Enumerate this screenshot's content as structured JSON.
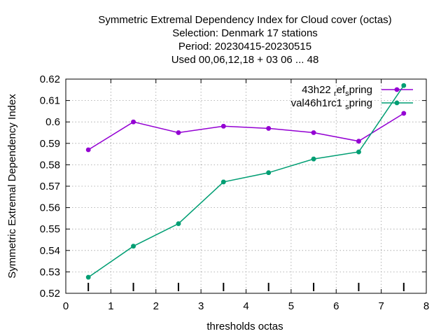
{
  "chart_data": {
    "type": "line",
    "title_lines": [
      "Symmetric Extremal Dependency Index  for Cloud cover (octas)",
      "Selection: Denmark     17 stations",
      "Period: 20230415-20230515",
      "Used  00,06,12,18  + 03 06 ... 48"
    ],
    "xlabel": "thresholds octas",
    "ylabel": "Symmetric Extremal Dependency Index",
    "xlim": [
      0,
      8
    ],
    "ylim": [
      0.52,
      0.62
    ],
    "x_ticks": [
      0,
      1,
      2,
      3,
      4,
      5,
      6,
      7,
      8
    ],
    "y_ticks": [
      0.52,
      0.53,
      0.54,
      0.55,
      0.56,
      0.57,
      0.58,
      0.59,
      0.6,
      0.61,
      0.62
    ],
    "x_tick_labels": [
      "0",
      "1",
      "2",
      "3",
      "4",
      "5",
      "6",
      "7",
      "8"
    ],
    "y_tick_labels": [
      "0.52",
      "0.53",
      "0.54",
      "0.55",
      "0.56",
      "0.57",
      "0.58",
      "0.59",
      "0.6",
      "0.61",
      "0.62"
    ],
    "grid": true,
    "legend_position": "top-right",
    "threshold_markers_x": [
      0.5,
      1.5,
      2.5,
      3.5,
      4.5,
      5.5,
      6.5,
      7.5
    ],
    "x": [
      0.5,
      1.5,
      2.5,
      3.5,
      4.5,
      5.5,
      6.5,
      7.5
    ],
    "series": [
      {
        "name": "43h22_ref_spring",
        "legend_parts": [
          "43h22 ",
          "r",
          "ef",
          "s",
          "pring"
        ],
        "color": "#9400d3",
        "values": [
          0.587,
          0.6,
          0.595,
          0.598,
          0.597,
          0.595,
          0.591,
          0.604
        ]
      },
      {
        "name": "val46h1rc1_spring",
        "legend_parts": [
          "val46h1rc1 ",
          "",
          "",
          "s",
          "pring"
        ],
        "color": "#009e73",
        "values": [
          0.5275,
          0.542,
          0.5525,
          0.572,
          0.5763,
          0.5827,
          0.586,
          0.617
        ]
      }
    ]
  }
}
